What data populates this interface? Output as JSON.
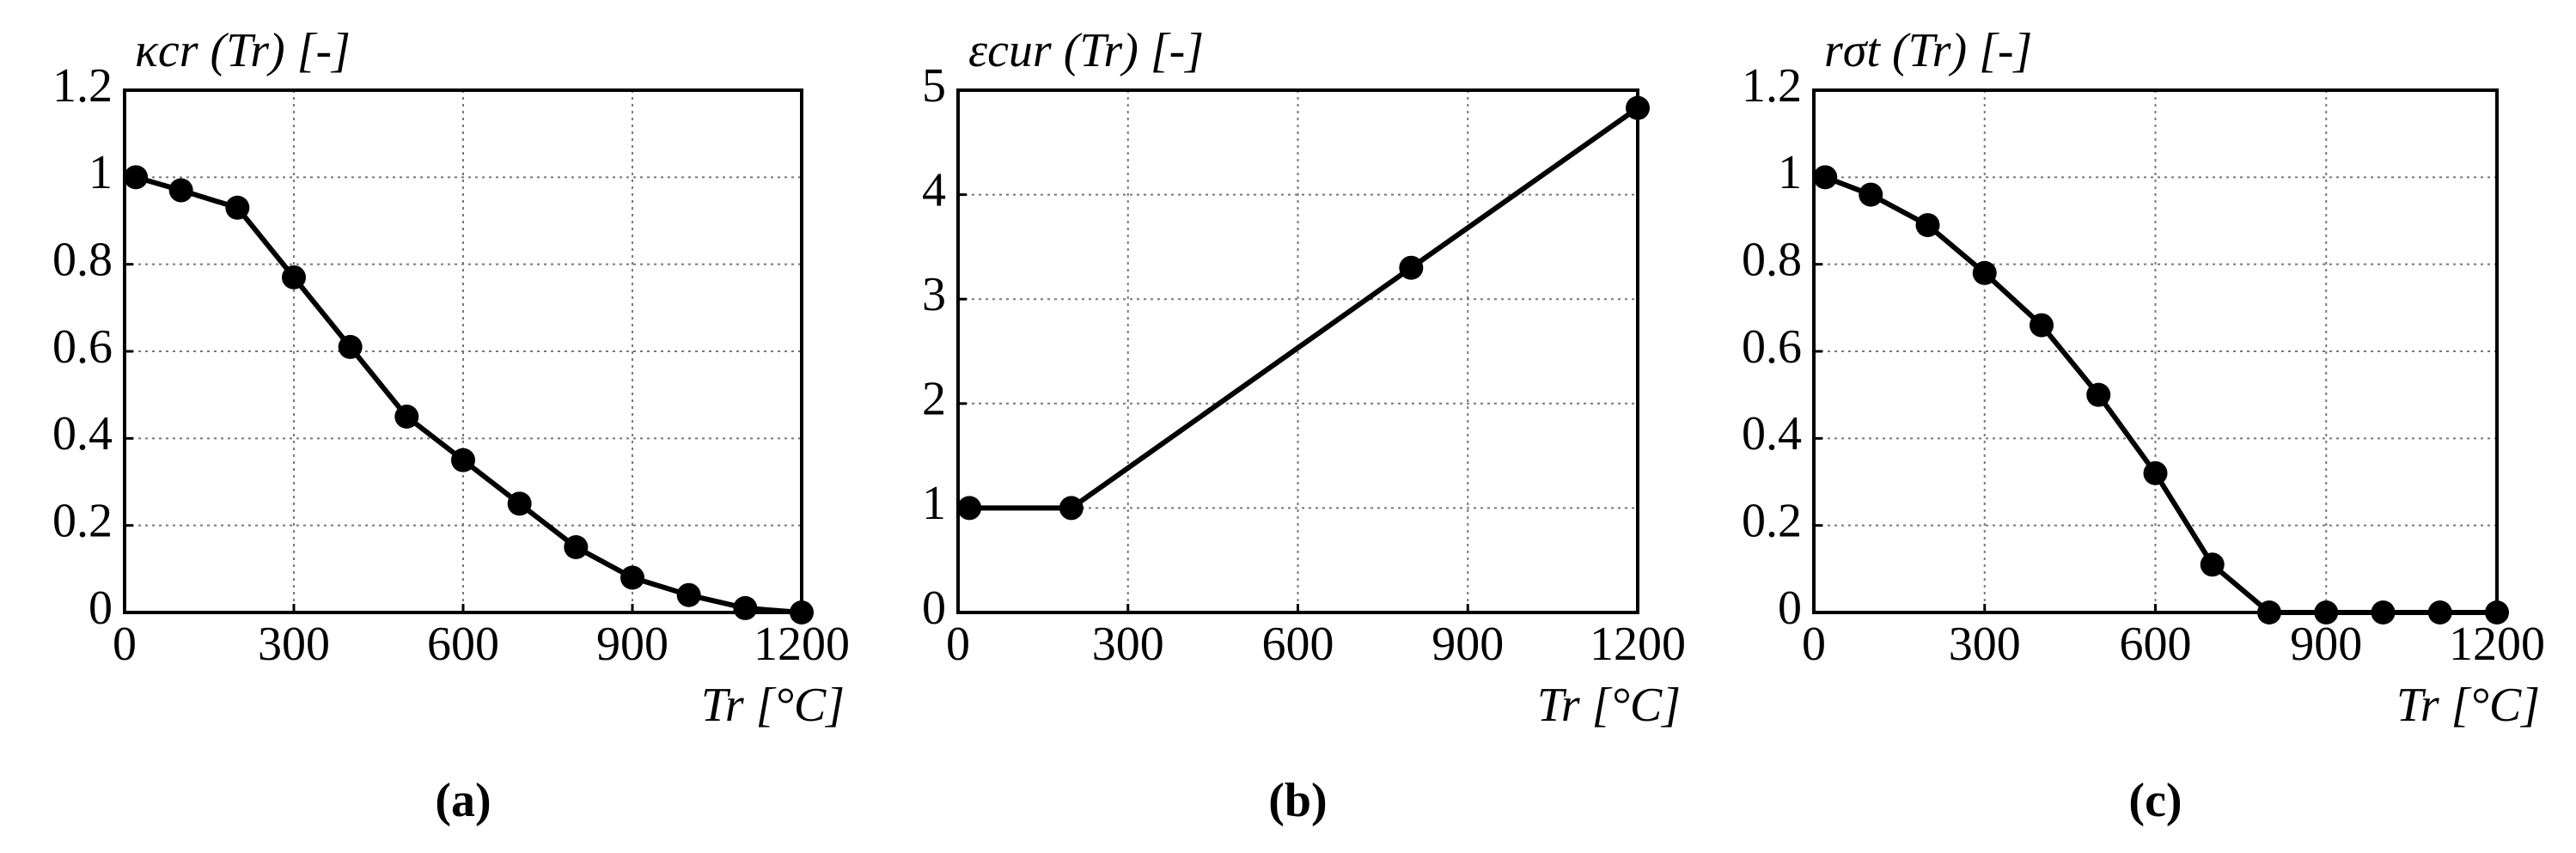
{
  "chart_data": [
    {
      "type": "line",
      "title": "κcr (Tr) [-]",
      "x_label": "Tr [°C]",
      "caption": "(a)",
      "x": [
        20,
        100,
        200,
        300,
        400,
        500,
        600,
        700,
        800,
        900,
        1000,
        1100,
        1200
      ],
      "series": [
        {
          "color": "#000000",
          "values": [
            1,
            0.97,
            0.93,
            0.77,
            0.61,
            0.45,
            0.35,
            0.25,
            0.15,
            0.08,
            0.04,
            0.01,
            0
          ]
        }
      ],
      "xlim": [
        0,
        1200
      ],
      "xticks": [
        0,
        300,
        600,
        900,
        1200
      ],
      "ylim": [
        0,
        1.2
      ],
      "yticks": [
        0,
        0.2,
        0.4,
        0.6,
        0.8,
        1,
        1.2
      ],
      "grid": true
    },
    {
      "type": "line",
      "title": "εcur (Tr) [-]",
      "x_label": "Tr [°C]",
      "caption": "(b)",
      "x": [
        20,
        200,
        800,
        1200
      ],
      "series": [
        {
          "color": "#000000",
          "values": [
            1,
            1,
            3.3,
            4.83
          ]
        }
      ],
      "xlim": [
        0,
        1200
      ],
      "xticks": [
        0,
        300,
        600,
        900,
        1200
      ],
      "ylim": [
        0,
        5
      ],
      "yticks": [
        0,
        1,
        2,
        3,
        4,
        5
      ],
      "grid": true
    },
    {
      "type": "line",
      "title": "rσt (Tr) [-]",
      "x_label": "Tr [°C]",
      "caption": "(c)",
      "x": [
        20,
        100,
        200,
        300,
        400,
        500,
        600,
        700,
        800,
        900,
        1000,
        1100,
        1200
      ],
      "series": [
        {
          "color": "#000000",
          "values": [
            1,
            0.96,
            0.89,
            0.78,
            0.66,
            0.5,
            0.32,
            0.11,
            0,
            0,
            0,
            0,
            0
          ]
        }
      ],
      "xlim": [
        0,
        1200
      ],
      "xticks": [
        0,
        300,
        600,
        900,
        1200
      ],
      "ylim": [
        0,
        1.2
      ],
      "yticks": [
        0,
        0.2,
        0.4,
        0.6,
        0.8,
        1,
        1.2
      ],
      "grid": true
    }
  ]
}
